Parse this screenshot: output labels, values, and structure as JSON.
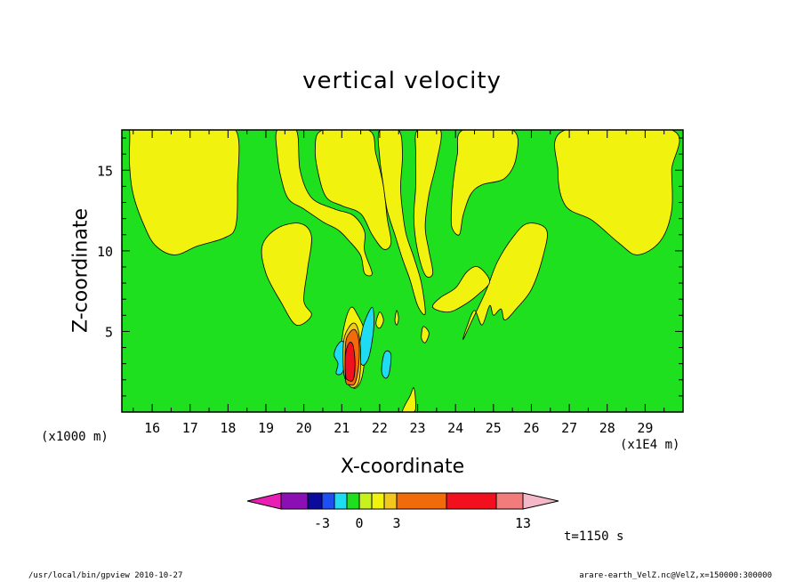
{
  "chart_data": {
    "type": "heatmap",
    "title": "vertical velocity",
    "xlabel": "X-coordinate",
    "ylabel": "Z-coordinate",
    "x_scale_label": "(x1E4 m)",
    "y_scale_label": "(x1000 m)",
    "xlim": [
      15.2,
      30.0
    ],
    "ylim": [
      0.0,
      17.5
    ],
    "x_ticks": [
      16,
      17,
      18,
      19,
      20,
      21,
      22,
      23,
      24,
      25,
      26,
      27,
      28,
      29
    ],
    "y_ticks": [
      5,
      10,
      15
    ],
    "x_minor_step": 0.5,
    "y_minor_step": 1,
    "time_label": "t=1150 s",
    "colorbar": {
      "tick_labels": [
        {
          "label": "-3",
          "value": -3
        },
        {
          "label": "0",
          "value": 0
        },
        {
          "label": "3",
          "value": 3
        },
        {
          "label": "13",
          "value": 13
        }
      ],
      "levels": [
        {
          "value": -5,
          "color": "#e81fb2"
        },
        {
          "value": -4,
          "color": "#8c0fb4"
        },
        {
          "value": -3,
          "color": "#0a0a9c"
        },
        {
          "value": -2,
          "color": "#1f4ff2"
        },
        {
          "value": -1,
          "color": "#1fdcf2"
        },
        {
          "value": 0,
          "color": "#1ee01e"
        },
        {
          "value": 1,
          "color": "#c8f21e"
        },
        {
          "value": 2,
          "color": "#f2f20f"
        },
        {
          "value": 3,
          "color": "#f2c81e"
        },
        {
          "value": 6,
          "color": "#f26b0a"
        },
        {
          "value": 9,
          "color": "#f20f1e"
        },
        {
          "value": 12,
          "color": "#f27b7b"
        },
        {
          "value": 14,
          "color": "#f5b8c8"
        }
      ]
    },
    "background_level_color": "#1ee01e",
    "regions": [
      {
        "level": 2,
        "color": "#f2f20f",
        "points": [
          [
            15.2,
            17.5
          ],
          [
            15.2,
            17.5
          ],
          [
            16.1,
            17.5
          ],
          [
            17.2,
            17.5
          ],
          [
            18.2,
            17.5
          ],
          [
            18.25,
            14
          ],
          [
            18.2,
            11.5
          ],
          [
            17.9,
            10.8
          ],
          [
            17.2,
            10.3
          ],
          [
            16.6,
            9.75
          ],
          [
            16.1,
            10.3
          ],
          [
            15.8,
            11.5
          ],
          [
            15.5,
            13.5
          ],
          [
            15.4,
            15.5
          ],
          [
            15.4,
            17.5
          ]
        ]
      },
      {
        "level": 2,
        "color": "#f2f20f",
        "points": [
          [
            19.3,
            17.5
          ],
          [
            19.8,
            17.5
          ],
          [
            19.9,
            15
          ],
          [
            20.2,
            13.3
          ],
          [
            20.8,
            12.6
          ],
          [
            21.3,
            12.2
          ],
          [
            21.6,
            11.2
          ],
          [
            21.6,
            10
          ],
          [
            21.8,
            8.6
          ],
          [
            21.6,
            8.6
          ],
          [
            21.5,
            9.7
          ],
          [
            21.2,
            10.6
          ],
          [
            20.9,
            11.3
          ],
          [
            20.5,
            11.8
          ],
          [
            20.0,
            12.6
          ],
          [
            19.6,
            13.2
          ],
          [
            19.4,
            14.5
          ],
          [
            19.3,
            16
          ]
        ]
      },
      {
        "level": 2,
        "color": "#f2f20f",
        "points": [
          [
            20.5,
            17.5
          ],
          [
            21.7,
            17.5
          ],
          [
            21.9,
            16
          ],
          [
            22.1,
            14
          ],
          [
            22.2,
            12
          ],
          [
            22.3,
            10.5
          ],
          [
            22.1,
            10.1
          ],
          [
            21.8,
            11.0
          ],
          [
            21.5,
            12.3
          ],
          [
            21.0,
            12.8
          ],
          [
            20.6,
            13.3
          ],
          [
            20.4,
            14.6
          ],
          [
            20.3,
            16.3
          ]
        ]
      },
      {
        "level": 2,
        "color": "#f2f20f",
        "points": [
          [
            22.0,
            17.5
          ],
          [
            22.5,
            17.5
          ],
          [
            22.6,
            16
          ],
          [
            22.55,
            14
          ],
          [
            22.6,
            12.5
          ],
          [
            22.7,
            11
          ],
          [
            22.9,
            9.6
          ],
          [
            23.1,
            8
          ],
          [
            23.2,
            6.1
          ],
          [
            23.0,
            6.6
          ],
          [
            22.8,
            8.2
          ],
          [
            22.6,
            9.5
          ],
          [
            22.4,
            11
          ],
          [
            22.2,
            12.5
          ],
          [
            22.1,
            14
          ],
          [
            22.0,
            15.8
          ]
        ]
      },
      {
        "level": 2,
        "color": "#f2f20f",
        "points": [
          [
            23.0,
            17.5
          ],
          [
            23.6,
            17.5
          ],
          [
            23.5,
            15.5
          ],
          [
            23.3,
            13.5
          ],
          [
            23.2,
            11.5
          ],
          [
            23.3,
            10
          ],
          [
            23.4,
            8.6
          ],
          [
            23.2,
            8.5
          ],
          [
            23.0,
            10
          ],
          [
            22.9,
            12
          ],
          [
            22.95,
            14
          ],
          [
            22.95,
            16
          ]
        ]
      },
      {
        "level": 2,
        "color": "#f2f20f",
        "points": [
          [
            24.2,
            17.5
          ],
          [
            25.5,
            17.5
          ],
          [
            25.6,
            15.8
          ],
          [
            25.3,
            14.5
          ],
          [
            24.7,
            14.1
          ],
          [
            24.4,
            13.5
          ],
          [
            24.2,
            12.2
          ],
          [
            24.1,
            11
          ],
          [
            23.9,
            11.5
          ],
          [
            23.9,
            13
          ],
          [
            23.95,
            14.5
          ],
          [
            24.05,
            16
          ]
        ]
      },
      {
        "level": 2,
        "color": "#f2f20f",
        "points": [
          [
            24.2,
            4.5
          ],
          [
            24.4,
            5.5
          ],
          [
            24.8,
            7.5
          ],
          [
            25.1,
            9.3
          ],
          [
            25.5,
            10.8
          ],
          [
            25.9,
            11.7
          ],
          [
            26.4,
            11.3
          ],
          [
            26.3,
            9.6
          ],
          [
            26.0,
            7.6
          ],
          [
            25.6,
            6.4
          ],
          [
            25.3,
            5.7
          ],
          [
            25.2,
            6.4
          ],
          [
            25.0,
            6.0
          ],
          [
            24.9,
            6.6
          ],
          [
            24.7,
            5.4
          ],
          [
            24.5,
            6.3
          ],
          [
            24.3,
            5.3
          ]
        ]
      },
      {
        "level": 2,
        "color": "#f2f20f",
        "points": [
          [
            23.4,
            6.5
          ],
          [
            23.6,
            7.1
          ],
          [
            24.0,
            7.7
          ],
          [
            24.3,
            8.7
          ],
          [
            24.6,
            9.0
          ],
          [
            24.9,
            8.1
          ],
          [
            24.6,
            7.3
          ],
          [
            24.2,
            6.6
          ],
          [
            23.8,
            6.2
          ]
        ]
      },
      {
        "level": 2,
        "color": "#f2f20f",
        "points": [
          [
            19.8,
            5.4
          ],
          [
            19.4,
            6.8
          ],
          [
            19.0,
            8.6
          ],
          [
            18.9,
            10.3
          ],
          [
            19.3,
            11.4
          ],
          [
            19.9,
            11.7
          ],
          [
            20.2,
            10.9
          ],
          [
            20.1,
            8.9
          ],
          [
            20.0,
            6.9
          ],
          [
            20.2,
            6.0
          ]
        ]
      },
      {
        "level": 2,
        "color": "#f2f20f",
        "points": [
          [
            29.7,
            17.5
          ],
          [
            26.9,
            17.5
          ],
          [
            26.7,
            15
          ],
          [
            26.9,
            12.8
          ],
          [
            27.6,
            11.9
          ],
          [
            28.3,
            10.5
          ],
          [
            28.8,
            9.75
          ],
          [
            29.4,
            10.6
          ],
          [
            29.7,
            12.5
          ],
          [
            29.7,
            15
          ]
        ]
      },
      {
        "level": 2,
        "color": "#f2f20f",
        "points": [
          [
            21.25,
            6.5
          ],
          [
            21.1,
            5.7
          ],
          [
            21.0,
            4.2
          ],
          [
            21.1,
            2.6
          ],
          [
            21.3,
            1.5
          ],
          [
            21.5,
            1.9
          ],
          [
            21.6,
            3.3
          ],
          [
            21.6,
            5
          ],
          [
            21.4,
            6.1
          ]
        ]
      },
      {
        "level": 2,
        "color": "#f2f20f",
        "points": [
          [
            22.6,
            0
          ],
          [
            22.8,
            1.0
          ],
          [
            22.9,
            1.5
          ],
          [
            22.95,
            0.5
          ],
          [
            22.9,
            0
          ]
        ]
      },
      {
        "level": 2,
        "color": "#f2f20f",
        "points": [
          [
            23.1,
            4.6
          ],
          [
            23.15,
            5.3
          ],
          [
            23.3,
            4.9
          ],
          [
            23.2,
            4.3
          ]
        ]
      },
      {
        "level": 2,
        "color": "#f2f20f",
        "points": [
          [
            21.9,
            5.5
          ],
          [
            22.0,
            6.2
          ],
          [
            22.1,
            5.7
          ],
          [
            22.0,
            5.2
          ]
        ]
      },
      {
        "level": 2,
        "color": "#f2f20f",
        "points": [
          [
            22.4,
            5.7
          ],
          [
            22.45,
            6.3
          ],
          [
            22.5,
            5.8
          ],
          [
            22.45,
            5.4
          ]
        ]
      },
      {
        "level": -1,
        "color": "#1fdcf2",
        "points": [
          [
            20.9,
            3.0
          ],
          [
            20.8,
            3.5
          ],
          [
            20.85,
            4.0
          ],
          [
            21.0,
            4.4
          ],
          [
            21.1,
            4.0
          ],
          [
            21.1,
            3.2
          ],
          [
            21.0,
            2.4
          ],
          [
            20.85,
            2.4
          ]
        ]
      },
      {
        "level": -1,
        "color": "#1fdcf2",
        "points": [
          [
            21.45,
            3.5
          ],
          [
            21.5,
            4.6
          ],
          [
            21.6,
            5.6
          ],
          [
            21.8,
            6.5
          ],
          [
            21.85,
            5.6
          ],
          [
            21.8,
            4.4
          ],
          [
            21.7,
            3.3
          ],
          [
            21.55,
            2.9
          ]
        ]
      },
      {
        "level": -1,
        "color": "#1fdcf2",
        "points": [
          [
            22.05,
            2.5
          ],
          [
            22.1,
            3.5
          ],
          [
            22.2,
            3.8
          ],
          [
            22.3,
            3.5
          ],
          [
            22.25,
            2.4
          ],
          [
            22.15,
            2.1
          ]
        ]
      },
      {
        "level": -3,
        "color": "#0a0a9c",
        "points": [
          [
            21.05,
            2.7
          ],
          [
            21.05,
            3.6
          ],
          [
            21.1,
            4.0
          ],
          [
            21.15,
            3.5
          ],
          [
            21.15,
            2.8
          ]
        ]
      },
      {
        "level": 3,
        "color": "#f2c81e",
        "points": [
          [
            21.05,
            2.5
          ],
          [
            21.05,
            4.4
          ],
          [
            21.2,
            5.3
          ],
          [
            21.35,
            5.5
          ],
          [
            21.45,
            4.9
          ],
          [
            21.5,
            3.4
          ],
          [
            21.45,
            1.9
          ],
          [
            21.3,
            1.5
          ],
          [
            21.15,
            1.8
          ]
        ]
      },
      {
        "level": 6,
        "color": "#f26b0a",
        "points": [
          [
            21.1,
            2.0
          ],
          [
            21.1,
            4.2
          ],
          [
            21.2,
            4.9
          ],
          [
            21.35,
            5.1
          ],
          [
            21.45,
            4.4
          ],
          [
            21.45,
            3.0
          ],
          [
            21.35,
            1.8
          ],
          [
            21.2,
            1.7
          ]
        ]
      },
      {
        "level": 9,
        "color": "#f20f1e",
        "points": [
          [
            21.1,
            2.3
          ],
          [
            21.1,
            3.6
          ],
          [
            21.2,
            4.3
          ],
          [
            21.3,
            4.1
          ],
          [
            21.35,
            3.0
          ],
          [
            21.3,
            2.0
          ],
          [
            21.15,
            2.0
          ]
        ]
      }
    ]
  },
  "footer": {
    "left": "/usr/local/bin/gpview  2010-10-27",
    "right": "arare-earth_VelZ.nc@VelZ,x=150000:300000"
  }
}
